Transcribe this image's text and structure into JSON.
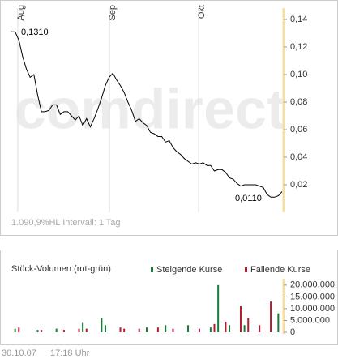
{
  "chart_data": [
    {
      "type": "line",
      "watermark": "comdirect",
      "footer": "1.090,9%HL Intervall: 1 Tag",
      "annotations": [
        "0,1310",
        "0,0110"
      ],
      "xlim": [
        0,
        72
      ],
      "xticks": [
        {
          "value": 1.7,
          "label": "Aug"
        },
        {
          "value": 26.1,
          "label": "Sep"
        },
        {
          "value": 49.8,
          "label": "Okt"
        }
      ],
      "ylim": [
        0,
        0.145
      ],
      "yticks": [
        {
          "value": 0.02,
          "label": "0,02"
        },
        {
          "value": 0.04,
          "label": "0,04"
        },
        {
          "value": 0.06,
          "label": "0,06"
        },
        {
          "value": 0.08,
          "label": "0,08"
        },
        {
          "value": 0.1,
          "label": "0,10"
        },
        {
          "value": 0.12,
          "label": "0,12"
        },
        {
          "value": 0.14,
          "label": "0,14"
        }
      ],
      "color": "#000000",
      "values": [
        0.131,
        0.131,
        0.125,
        0.113,
        0.104,
        0.098,
        0.1,
        0.085,
        0.073,
        0.073,
        0.074,
        0.078,
        0.078,
        0.071,
        0.073,
        0.073,
        0.07,
        0.067,
        0.07,
        0.063,
        0.068,
        0.062,
        0.068,
        0.075,
        0.083,
        0.092,
        0.098,
        0.101,
        0.096,
        0.092,
        0.087,
        0.08,
        0.074,
        0.066,
        0.068,
        0.065,
        0.063,
        0.058,
        0.057,
        0.055,
        0.055,
        0.051,
        0.052,
        0.047,
        0.044,
        0.042,
        0.039,
        0.037,
        0.035,
        0.036,
        0.035,
        0.036,
        0.034,
        0.034,
        0.03,
        0.031,
        0.031,
        0.029,
        0.025,
        0.024,
        0.021,
        0.019,
        0.02,
        0.02,
        0.02,
        0.02,
        0.019,
        0.018,
        0.013,
        0.011,
        0.011,
        0.012,
        0.015
      ]
    },
    {
      "type": "bar",
      "title": "Stück-Volumen (rot-grün)",
      "xlim": [
        0,
        72
      ],
      "ylim": [
        0,
        22000000
      ],
      "yticks": [
        {
          "value": 0,
          "label": "0"
        },
        {
          "value": 5000000,
          "label": "5.000.000"
        },
        {
          "value": 10000000,
          "label": "10.000.000"
        },
        {
          "value": 15000000,
          "label": "15.000.000"
        },
        {
          "value": 20000000,
          "label": "20.000.000"
        }
      ],
      "series": [
        {
          "name": "Steigende Kurse",
          "color": "#1a7a3a",
          "x": [
            1,
            7,
            12,
            19,
            24,
            25,
            36,
            41,
            47,
            53,
            55,
            58,
            62,
            71
          ],
          "values": [
            1500000,
            1000000,
            1500000,
            4000000,
            6000000,
            3000000,
            2000000,
            3000000,
            3000000,
            2000000,
            20000000,
            3000000,
            3000000,
            8000000
          ]
        },
        {
          "name": "Fallende Kurse",
          "color": "#b01c2e",
          "x": [
            2,
            8,
            14,
            18,
            20,
            29,
            30,
            34,
            39,
            43,
            50,
            54,
            57,
            61,
            63,
            66,
            69
          ],
          "values": [
            2000000,
            1000000,
            1000000,
            1500000,
            1500000,
            2000000,
            1500000,
            1500000,
            2000000,
            1500000,
            1500000,
            3500000,
            4500000,
            11000000,
            6000000,
            3000000,
            13000000
          ]
        }
      ]
    },
    {
      "type": "text",
      "date": "30.10.07",
      "time": "17:18 Uhr"
    }
  ]
}
